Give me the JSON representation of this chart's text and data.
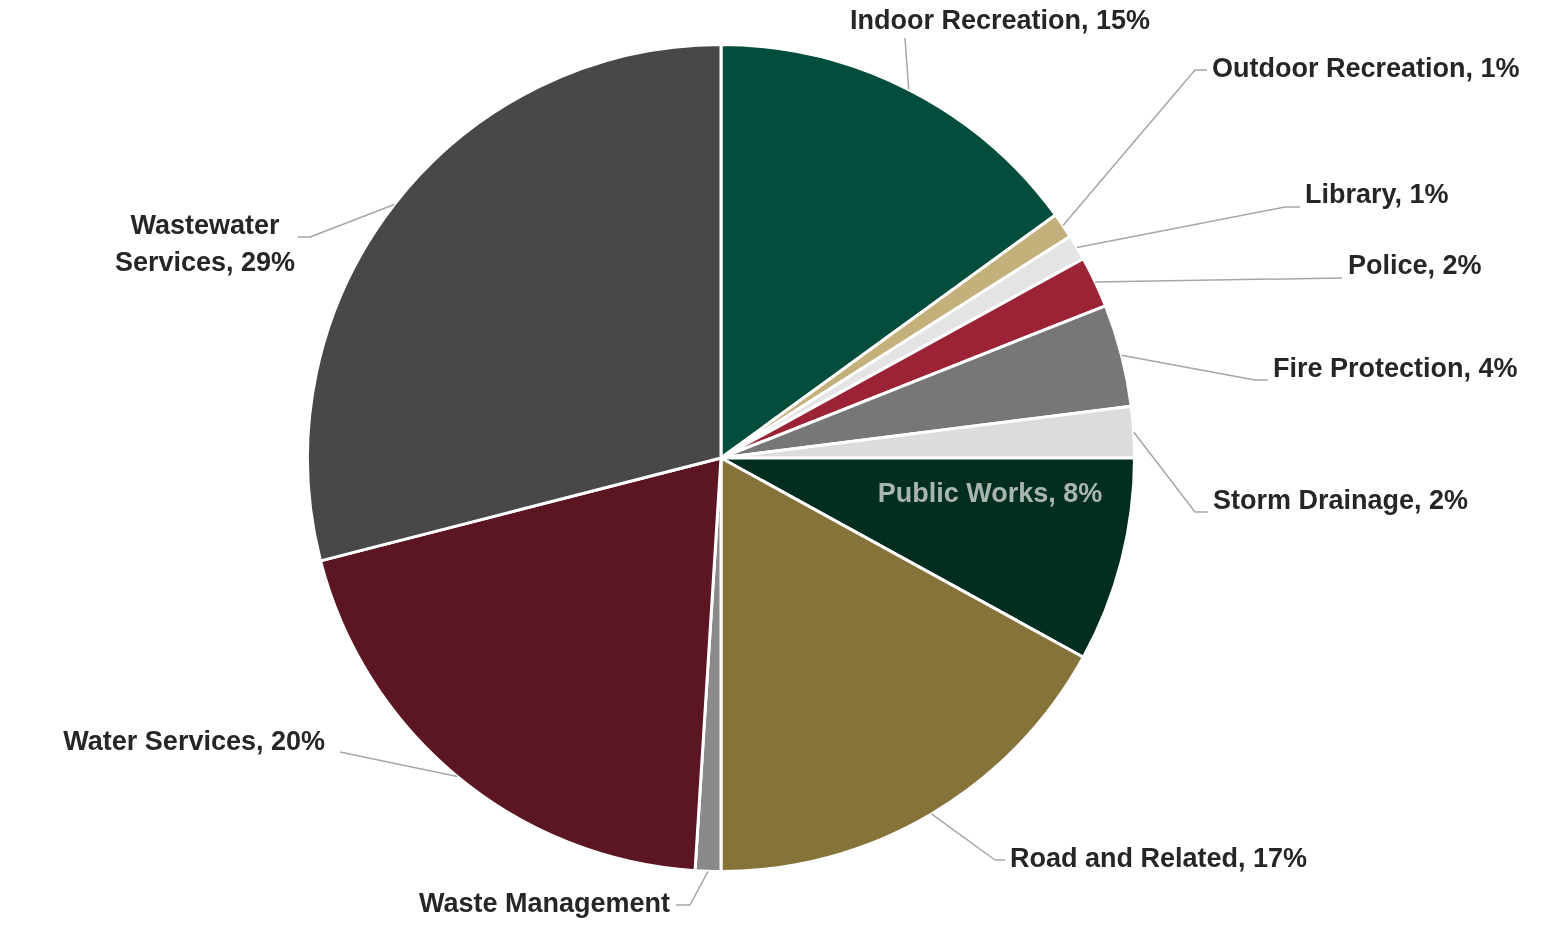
{
  "chart_data": {
    "type": "pie",
    "categories": [
      "Indoor Recreation",
      "Outdoor Recreation",
      "Library",
      "Police",
      "Fire Protection",
      "Storm Drainage",
      "Public Works",
      "Road and Related",
      "Waste Management",
      "Water Services",
      "Wastewater Services"
    ],
    "value_labels": [
      "15%",
      "1%",
      "1%",
      "2%",
      "4%",
      "2%",
      "8%",
      "17%",
      null,
      "20%",
      "29%"
    ],
    "values": [
      15,
      1,
      1,
      2,
      4,
      2,
      8,
      17,
      1,
      20,
      29
    ],
    "colors": [
      "#034d3c",
      "#c4b07a",
      "#e4e4e4",
      "#9b2335",
      "#777777",
      "#dcdcdc",
      "#022e22",
      "#85733a",
      "#8a8a8a",
      "#5c1522",
      "#484848"
    ],
    "legend": false
  }
}
